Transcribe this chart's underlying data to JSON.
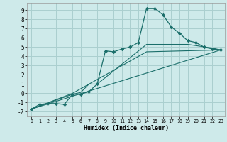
{
  "xlabel": "Humidex (Indice chaleur)",
  "background_color": "#ceeaea",
  "grid_color": "#aacfcf",
  "line_color": "#1a6e6a",
  "xlim": [
    -0.5,
    23.5
  ],
  "ylim": [
    -2.5,
    9.8
  ],
  "xticks": [
    0,
    1,
    2,
    3,
    4,
    5,
    6,
    7,
    8,
    9,
    10,
    11,
    12,
    13,
    14,
    15,
    16,
    17,
    18,
    19,
    20,
    21,
    22,
    23
  ],
  "yticks": [
    -2,
    -1,
    0,
    1,
    2,
    3,
    4,
    5,
    6,
    7,
    8,
    9
  ],
  "line1_x": [
    0,
    1,
    2,
    3,
    4,
    5,
    6,
    7,
    8,
    9,
    10,
    11,
    12,
    13,
    14,
    15,
    16,
    17,
    18,
    19,
    20,
    21,
    22,
    23
  ],
  "line1_y": [
    -1.7,
    -1.2,
    -1.1,
    -1.1,
    -1.2,
    -0.1,
    -0.1,
    0.2,
    1.0,
    4.6,
    4.5,
    4.8,
    5.0,
    5.5,
    9.2,
    9.2,
    8.5,
    7.2,
    6.5,
    5.7,
    5.5,
    5.0,
    4.8,
    4.7
  ],
  "line2_x": [
    0,
    5,
    6,
    7,
    8,
    14,
    19,
    22,
    23
  ],
  "line2_y": [
    -1.7,
    -0.1,
    0.1,
    1.0,
    1.0,
    5.3,
    5.3,
    4.9,
    4.7
  ],
  "line3_x": [
    0,
    23
  ],
  "line3_y": [
    -1.7,
    4.7
  ],
  "line4_x": [
    0,
    5,
    14,
    23
  ],
  "line4_y": [
    -1.7,
    0.0,
    4.5,
    4.7
  ]
}
